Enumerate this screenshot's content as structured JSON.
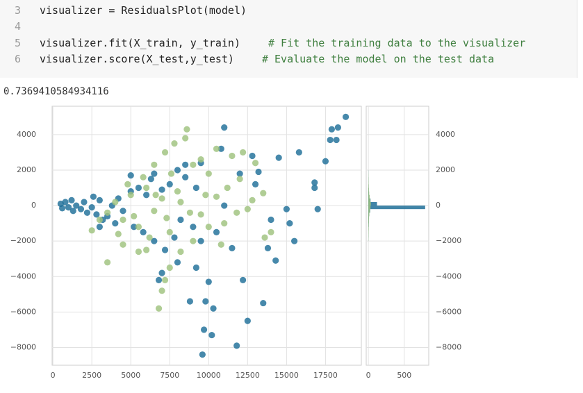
{
  "code_cell": {
    "lines": [
      {
        "number": "3",
        "code": "visualizer = ResidualsPlot(model)"
      },
      {
        "number": "4"
      },
      {
        "number": "5",
        "code": "visualizer.fit(X_train, y_train)",
        "comment": "# Fit the training data to the visualizer"
      },
      {
        "number": "6",
        "code": "visualizer.score(X_test,y_test)",
        "comment": "# Evaluate the model on the test data"
      }
    ]
  },
  "output": {
    "text": "0.7369410584934116"
  },
  "chart_data": [
    {
      "type": "scatter",
      "grid": true,
      "xlim": [
        -50,
        19800
      ],
      "xticks": [
        0,
        2500,
        5000,
        7500,
        10000,
        12500,
        15000,
        17500
      ],
      "ylim": [
        -9000,
        5600
      ],
      "yticks": [
        {
          "value": -8000,
          "label": "−8000"
        },
        {
          "value": -6000,
          "label": "−6000"
        },
        {
          "value": -4000,
          "label": "−4000"
        },
        {
          "value": -2000,
          "label": "−2000"
        },
        0,
        2000,
        4000
      ],
      "series": [
        {
          "color": "#1f6f98",
          "x": [
            500,
            800,
            1000,
            1200,
            1500,
            1800,
            2000,
            600,
            1300,
            2200,
            2500,
            2800,
            3000,
            3200,
            2600,
            3500,
            3800,
            4000,
            4200,
            4500,
            5000,
            5200,
            5500,
            5800,
            6000,
            6300,
            6500,
            7000,
            7200,
            7500,
            7800,
            8000,
            8200,
            8500,
            9000,
            9200,
            9500,
            10000,
            9800,
            10200,
            9700,
            9600,
            10300,
            8800,
            11800,
            12200,
            12500,
            13500,
            13800,
            14300,
            14000,
            15200,
            15500,
            15000,
            14500,
            15800,
            16800,
            17000,
            17500,
            17800,
            18200,
            17900,
            18300,
            18800,
            16800,
            11000,
            10800,
            12800,
            13000,
            11500,
            7000,
            6800,
            8000,
            9200,
            3000,
            5000,
            12000,
            13200,
            10500,
            11000,
            6500,
            9500,
            8500
          ],
          "values": [
            100,
            200,
            -100,
            300,
            0,
            -200,
            200,
            -150,
            -300,
            -400,
            -100,
            -500,
            300,
            -800,
            500,
            -600,
            0,
            -1000,
            400,
            -300,
            800,
            -1200,
            1000,
            -1500,
            600,
            1500,
            -2000,
            900,
            -2500,
            1200,
            -1800,
            2000,
            -800,
            1600,
            -1200,
            1000,
            -2000,
            -4300,
            -5400,
            -7300,
            -7000,
            -8400,
            -5800,
            -5400,
            -7900,
            -4200,
            -6500,
            -5500,
            -2400,
            -3100,
            -800,
            -1000,
            -2000,
            -200,
            2700,
            3000,
            1000,
            -200,
            2500,
            3700,
            3700,
            4300,
            4400,
            5000,
            1300,
            4400,
            3200,
            2800,
            1200,
            -2400,
            -3800,
            -4200,
            -3200,
            -3500,
            -1200,
            1700,
            1800,
            1900,
            -1500,
            0,
            1800,
            2400,
            2300
          ]
        },
        {
          "color": "#9fc27e",
          "x": [
            3500,
            4000,
            4500,
            5000,
            5500,
            6000,
            6500,
            7000,
            7500,
            8000,
            8500,
            8600,
            9000,
            9500,
            10000,
            10500,
            11000,
            11500,
            12000,
            12500,
            13000,
            13500,
            14000,
            6800,
            7200,
            7000,
            7500,
            6000,
            5500,
            4500,
            3500,
            8200,
            9000,
            10000,
            11800,
            12800,
            7800,
            7200,
            6500,
            5800,
            4800,
            3000,
            2500,
            9500,
            10500,
            12200,
            8800,
            6200,
            5200,
            9800,
            11200,
            4200,
            7600,
            8200,
            10800,
            13600,
            6600,
            7300
          ],
          "values": [
            -400,
            200,
            -800,
            600,
            -1200,
            1000,
            -300,
            400,
            -1500,
            800,
            3800,
            4300,
            2300,
            -500,
            1800,
            500,
            -1000,
            2800,
            1500,
            -200,
            2400,
            700,
            -1500,
            -5800,
            -4200,
            -4800,
            -3500,
            -2500,
            -2600,
            -2200,
            -3200,
            -2600,
            -2000,
            -1200,
            -400,
            300,
            3500,
            3000,
            2300,
            1600,
            1200,
            -800,
            -1400,
            2600,
            3200,
            3000,
            -400,
            -1800,
            -600,
            600,
            1000,
            -1600,
            1800,
            200,
            -2200,
            -1800,
            600,
            -700
          ]
        }
      ]
    },
    {
      "type": "histogram",
      "orientation": "horizontal",
      "grid": true,
      "xlim": [
        -30,
        840
      ],
      "xticks": [
        0,
        500
      ],
      "ylim": [
        -9000,
        5600
      ],
      "yticks": [
        {
          "value": -8000,
          "label": "−8000"
        },
        {
          "value": -6000,
          "label": "−6000"
        },
        {
          "value": -4000,
          "label": "−4000"
        },
        {
          "value": -2000,
          "label": "−2000"
        },
        0,
        2000,
        4000
      ],
      "bins": [
        -2000,
        -1800,
        -1600,
        -1400,
        -1200,
        -1000,
        -800,
        -600,
        -400,
        -200,
        0,
        200,
        400,
        600,
        800,
        1000,
        1200,
        1400,
        1600,
        1800,
        2000
      ],
      "series": [
        {
          "color": "#1f6f98",
          "values": [
            1,
            2,
            2,
            3,
            5,
            6,
            8,
            12,
            25,
            790,
            120,
            30,
            14,
            8,
            5,
            3,
            2,
            2,
            1,
            1
          ]
        },
        {
          "color": "#9fc27e",
          "values": [
            2,
            3,
            4,
            5,
            6,
            8,
            10,
            14,
            22,
            30,
            35,
            26,
            18,
            12,
            8,
            6,
            4,
            3,
            2,
            1
          ]
        }
      ]
    }
  ]
}
